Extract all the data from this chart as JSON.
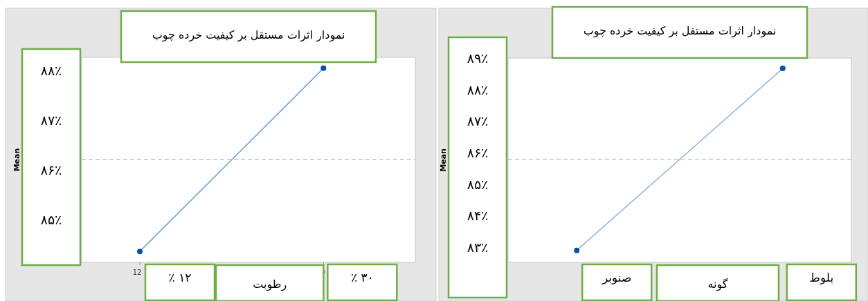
{
  "chart_data": [
    {
      "type": "line",
      "title": "نمودار اثرات مستقل بر کیفیت خرده چوب",
      "xlabel": "رطوبت",
      "ylabel": "Mean",
      "x": [
        12,
        30
      ],
      "values": [
        84.36,
        88.04
      ],
      "color": "#6a9fd4",
      "marker": "circle",
      "xlim": [
        6.3,
        39
      ],
      "xticks": [
        12,
        30
      ],
      "ylim": [
        84.14,
        88.26
      ],
      "yticks": [
        {
          "value": 85,
          "label": "۸۵٪"
        },
        {
          "value": 86,
          "label": "۸۶٪"
        },
        {
          "value": 87,
          "label": "۸۷٪"
        },
        {
          "value": 88,
          "label": "۸۸٪"
        }
      ],
      "ref_lines": [
        {
          "axis": "y",
          "value": 86.2,
          "color": "#aaaaaa",
          "line_style": "dashed"
        }
      ],
      "annotations": [
        "٪ ۱۲",
        "٪ ۳۰"
      ]
    },
    {
      "type": "line",
      "title": "نمودار اثرات مستقل بر کیفیت خرده چوب",
      "xlabel": "گونه",
      "ylabel": "Mean",
      "categories": [
        "صنوبر",
        "بلوط"
      ],
      "values": [
        82.9,
        88.67
      ],
      "color": "#8fb4e0",
      "marker": "circle",
      "ylim": [
        82.52,
        89
      ],
      "yticks": [
        {
          "value": 83,
          "label": "۸۳٪"
        },
        {
          "value": 84,
          "label": "۸۴٪"
        },
        {
          "value": 85,
          "label": "۸۵٪"
        },
        {
          "value": 86,
          "label": "۸۶٪"
        },
        {
          "value": 87,
          "label": "۸۷٪"
        },
        {
          "value": 88,
          "label": "۸۸٪"
        },
        {
          "value": 89,
          "label": "۸۹٪"
        }
      ],
      "ref_lines": [
        {
          "axis": "y",
          "value": 85.79,
          "color": "#aaaaaa",
          "line_style": "dashed"
        }
      ]
    }
  ]
}
